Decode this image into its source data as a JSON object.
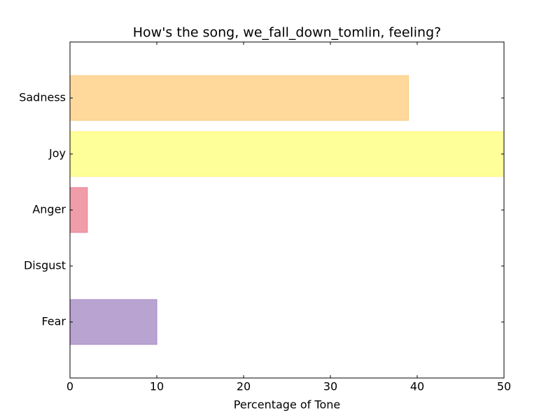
{
  "chart_data": {
    "type": "barh",
    "title": "How's the song, we_fall_down_tomlin, feeling?",
    "x_label": "Percentage of Tone",
    "categories": [
      "Fear",
      "Disgust",
      "Anger",
      "Joy",
      "Sadness"
    ],
    "values": [
      10,
      0,
      2,
      50,
      39
    ],
    "colors": [
      "#b9a4d1",
      "#9fd7b0",
      "#f19da9",
      "#ffff99",
      "#fed99b"
    ],
    "edge_colors": [
      "#a585c9",
      "#7cc492",
      "#e97a92",
      "#fff27a",
      "#f8cc82"
    ],
    "xlim": [
      0,
      50
    ],
    "xticks": [
      0,
      10,
      20,
      30,
      40,
      50
    ]
  }
}
